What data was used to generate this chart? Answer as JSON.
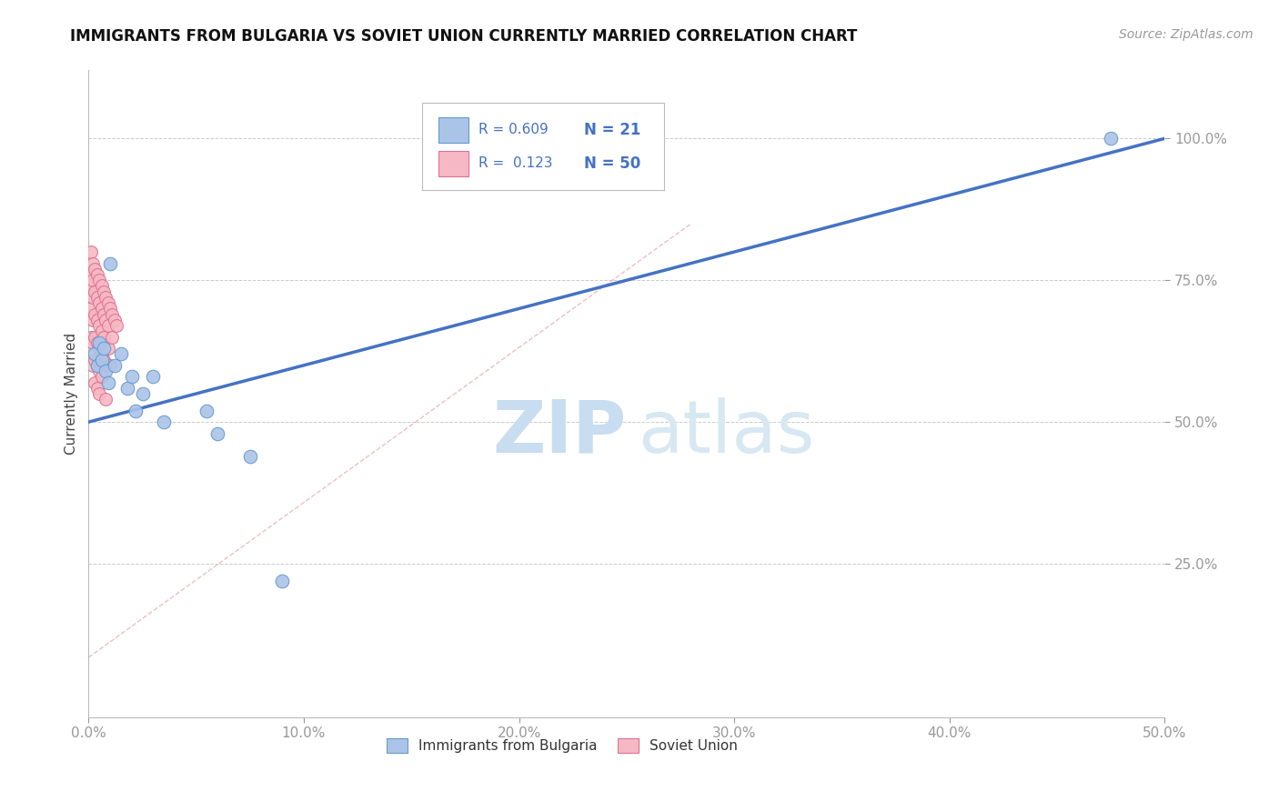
{
  "title": "IMMIGRANTS FROM BULGARIA VS SOVIET UNION CURRENTLY MARRIED CORRELATION CHART",
  "source": "Source: ZipAtlas.com",
  "ylabel": "Currently Married",
  "xlim": [
    0.0,
    0.5
  ],
  "ylim": [
    -0.02,
    1.12
  ],
  "xticks": [
    0.0,
    0.1,
    0.2,
    0.3,
    0.4,
    0.5
  ],
  "xticklabels": [
    "0.0%",
    "10.0%",
    "20.0%",
    "30.0%",
    "40.0%",
    "50.0%"
  ],
  "yticks": [
    0.25,
    0.5,
    0.75,
    1.0
  ],
  "yticklabels": [
    "25.0%",
    "50.0%",
    "75.0%",
    "100.0%"
  ],
  "grid_color": "#cccccc",
  "background_color": "#ffffff",
  "bulgaria_color": "#aac4e8",
  "soviet_color": "#f5b8c4",
  "bulgaria_edge_color": "#6699cc",
  "soviet_edge_color": "#e07090",
  "regression_line_color": "#4472c4",
  "reference_line_color": "#e8b0b8",
  "R_bulgaria": 0.609,
  "N_bulgaria": 21,
  "R_soviet": 0.123,
  "N_soviet": 50,
  "legend_label_bulgaria": "Immigrants from Bulgaria",
  "legend_label_soviet": "Soviet Union",
  "watermark_zip": "ZIP",
  "watermark_atlas": "atlas",
  "bulgaria_x": [
    0.003,
    0.004,
    0.005,
    0.006,
    0.007,
    0.008,
    0.009,
    0.01,
    0.012,
    0.015,
    0.018,
    0.02,
    0.022,
    0.025,
    0.03,
    0.035,
    0.055,
    0.06,
    0.075,
    0.09,
    0.475
  ],
  "bulgaria_y": [
    0.62,
    0.6,
    0.64,
    0.61,
    0.63,
    0.59,
    0.57,
    0.78,
    0.6,
    0.62,
    0.56,
    0.58,
    0.52,
    0.55,
    0.58,
    0.5,
    0.52,
    0.48,
    0.44,
    0.22,
    1.0
  ],
  "soviet_x": [
    0.001,
    0.001,
    0.001,
    0.001,
    0.001,
    0.002,
    0.002,
    0.002,
    0.002,
    0.002,
    0.002,
    0.003,
    0.003,
    0.003,
    0.003,
    0.003,
    0.003,
    0.004,
    0.004,
    0.004,
    0.004,
    0.004,
    0.004,
    0.005,
    0.005,
    0.005,
    0.005,
    0.005,
    0.005,
    0.006,
    0.006,
    0.006,
    0.006,
    0.006,
    0.007,
    0.007,
    0.007,
    0.007,
    0.008,
    0.008,
    0.008,
    0.009,
    0.009,
    0.009,
    0.01,
    0.01,
    0.011,
    0.011,
    0.012,
    0.013
  ],
  "soviet_y": [
    0.8,
    0.76,
    0.74,
    0.7,
    0.65,
    0.78,
    0.75,
    0.72,
    0.68,
    0.64,
    0.6,
    0.77,
    0.73,
    0.69,
    0.65,
    0.61,
    0.57,
    0.76,
    0.72,
    0.68,
    0.64,
    0.6,
    0.56,
    0.75,
    0.71,
    0.67,
    0.63,
    0.59,
    0.55,
    0.74,
    0.7,
    0.66,
    0.62,
    0.58,
    0.73,
    0.69,
    0.65,
    0.61,
    0.72,
    0.68,
    0.54,
    0.71,
    0.67,
    0.63,
    0.7,
    0.6,
    0.69,
    0.65,
    0.68,
    0.67
  ],
  "reg_line_x": [
    0.0,
    0.5
  ],
  "reg_line_y": [
    0.5,
    1.0
  ],
  "ref_line_x": [
    0.0,
    0.28
  ],
  "ref_line_y": [
    0.085,
    0.85
  ]
}
